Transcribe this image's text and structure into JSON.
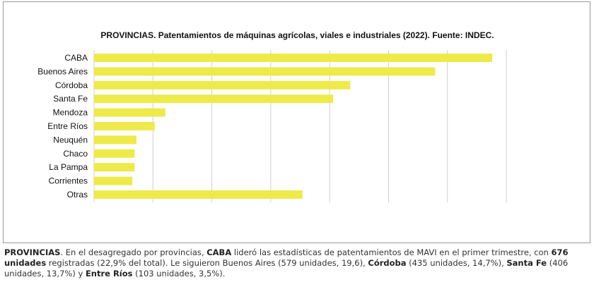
{
  "chart_data": {
    "type": "bar",
    "orientation": "horizontal",
    "title": "PROVINCIAS. Patentamientos de máquinas agrícolas, viales e industriales (2022). Fuente: INDEC.",
    "categories": [
      "CABA",
      "Buenos Aires",
      "Córdoba",
      "Santa Fe",
      "Mendoza",
      "Entre Ríos",
      "Neuquén",
      "Chaco",
      "La Pampa",
      "Corrientes",
      "Otras"
    ],
    "values": [
      676,
      579,
      435,
      406,
      121,
      103,
      72,
      69,
      69,
      65,
      354
    ],
    "xlim": [
      0,
      700
    ],
    "grid": true,
    "bar_color": "#eeea4a",
    "grid_color": "#cfcfcf"
  },
  "caption": {
    "p1": "PROVINCIAS",
    "p2": ". En el desagregado por provincias, ",
    "p3": "CABA",
    "p4": " lideró las estadísticas de patentamientos de MAVI en el primer trimestre, con ",
    "p5": "676 unidades",
    "p6": " registradas (22,9% del total). Le siguieron Buenos Aires (579 unidades, 19,6), ",
    "p7": "Córdoba",
    "p8": " (435 unidades, 14,7%), ",
    "p9": "Santa Fe",
    "p10": " (406 unidades, 13,7%) y ",
    "p11": "Entre Ríos",
    "p12": " (103 unidades, 3,5%)."
  }
}
